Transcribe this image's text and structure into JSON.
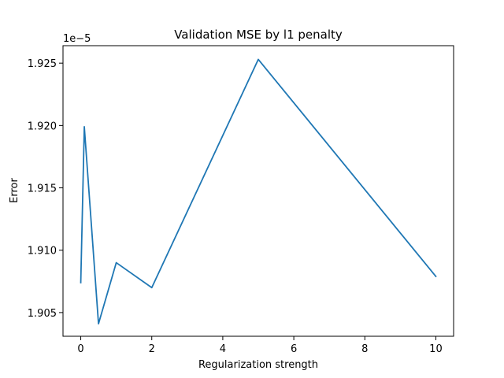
{
  "chart_data": {
    "type": "line",
    "title": "Validation MSE by l1 penalty",
    "xlabel": "Regularization strength",
    "ylabel": "Error",
    "y_offset_label": "1e−5",
    "xlim": [
      -0.5,
      10.5
    ],
    "ylim": [
      1.9031,
      1.9264
    ],
    "xticks": [
      0,
      2,
      4,
      6,
      8,
      10
    ],
    "xtick_labels": [
      "0",
      "2",
      "4",
      "6",
      "8",
      "10"
    ],
    "yticks": [
      1.905,
      1.91,
      1.915,
      1.92,
      1.925
    ],
    "ytick_labels": [
      "1.905",
      "1.910",
      "1.915",
      "1.920",
      "1.925"
    ],
    "grid": false,
    "legend": "none",
    "series": [
      {
        "color": "#1f77b4",
        "x": [
          0,
          0.1,
          0.5,
          1,
          2,
          5,
          10
        ],
        "y": [
          1.9074,
          1.9199,
          1.9041,
          1.909,
          1.907,
          1.9253,
          1.9079
        ]
      }
    ]
  }
}
